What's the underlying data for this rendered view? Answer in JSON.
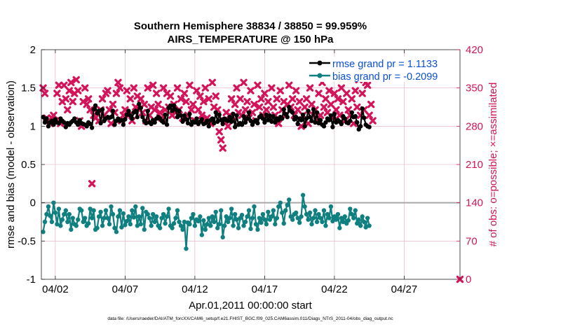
{
  "chart_data": {
    "type": "line",
    "title_line1": "Southern Hemisphere 38834 / 38850 = 99.959%",
    "title_line2": "AIRS_TEMPERATURE @ 150 hPa",
    "xlabel": "Apr.01,2011 00:00:00 start",
    "ylabel_left": "rmse and bias (model - observation)",
    "ylabel_right": "# of obs: o=possible; ×=assimilated",
    "footer": "data file: /Users/raeder/DAI/ATM_forcXX/CAM6_setup/f.e21.FHIST_BGC.f09_025.CAM6assim.011/Diags_NTrS_2011-04/obs_diag_output.nc",
    "x_tick_labels": [
      "04/02",
      "04/07",
      "04/12",
      "04/17",
      "04/22",
      "04/27"
    ],
    "x_tick_days": [
      2,
      7,
      12,
      17,
      22,
      27
    ],
    "x_range_days": [
      1.0,
      31.0
    ],
    "y_left_range": [
      -1,
      2
    ],
    "y_left_ticks": [
      "-1",
      "-0.5",
      "0",
      "0.5",
      "1",
      "1.5",
      "2"
    ],
    "y_right_range": [
      0,
      420
    ],
    "y_right_ticks": [
      "0",
      "70",
      "140",
      "210",
      "280",
      "350",
      "420"
    ],
    "colors": {
      "rmse": "#000000",
      "bias": "#0f7f7f",
      "obs": "#d4145a",
      "grid": "#e6a8bd",
      "zero_line": "#a8a8a8",
      "legend_text": "#0a4fd6"
    },
    "legend": {
      "placement": "top-right",
      "items": [
        {
          "label": "rmse grand pr = 1.1133",
          "series": "rmse"
        },
        {
          "label": "bias grand pr = -0.2099",
          "series": "bias"
        }
      ]
    },
    "series": [
      {
        "name": "rmse grand pr = 1.1133",
        "axis": "left",
        "marker": "circle",
        "color": "#000000",
        "values": [
          1.12,
          1.05,
          1.1,
          1.0,
          1.05,
          1.07,
          1.02,
          1.09,
          1.05,
          1.04,
          1.1,
          1.07,
          1.05,
          0.99,
          1.04,
          1.02,
          1.05,
          1.07,
          1.1,
          1.05,
          1.02,
          1.08,
          1.04,
          1.03,
          1.02,
          1.0,
          1.05,
          1.03,
          0.98,
          1.22,
          1.27,
          1.17,
          1.2,
          1.04,
          1.22,
          1.07,
          1.1,
          1.12,
          1.11,
          1.12,
          1.2,
          1.02,
          1.07,
          1.1,
          1.07,
          1.08,
          1.02,
          1.09,
          1.15,
          1.2,
          1.14,
          1.1,
          1.18,
          1.2,
          1.12,
          1.29,
          1.24,
          1.12,
          1.07,
          1.04,
          1.2,
          1.05,
          1.03,
          1.08,
          1.05,
          1.1,
          1.12,
          1.1,
          1.07,
          1.05,
          1.15,
          1.02,
          1.24,
          1.27,
          1.2,
          1.27,
          1.22,
          1.12,
          1.2,
          1.14,
          1.06,
          1.14,
          1.09,
          1.04,
          1.16,
          1.02,
          1.06,
          1.05,
          1.1,
          1.03,
          1.06,
          1.09,
          1.03,
          1.04,
          1.07,
          1.0,
          1.08,
          1.1,
          1.04,
          1.18,
          1.06,
          1.15,
          1.08,
          1.03,
          1.1,
          1.08,
          1.07,
          1.12,
          1.06,
          1.16,
          0.99,
          1.14,
          1.02,
          1.04,
          1.02,
          1.13,
          1.05,
          1.1,
          1.18,
          1.07,
          1.02,
          1.06,
          1.08,
          1.04,
          1.12,
          1.14,
          1.1,
          1.05,
          1.15,
          1.08,
          1.14,
          1.06,
          1.13,
          1.05,
          1.1,
          1.08,
          1.12,
          1.1,
          1.22,
          1.16,
          1.12,
          1.25,
          1.2,
          1.18,
          1.09,
          1.12,
          1.03,
          1.1,
          1.08,
          1.15,
          1.0,
          1.1,
          1.2,
          1.12,
          1.07,
          1.22,
          1.05,
          1.18,
          1.04,
          1.08,
          1.02,
          1.0,
          1.05,
          1.1,
          1.08,
          1.14,
          0.99,
          1.16,
          1.05,
          1.08,
          1.06,
          1.03,
          1.13,
          1.1,
          1.05,
          1.04,
          1.07,
          1.18,
          1.12,
          1.13,
          1.05,
          0.96,
          1.0,
          1.23,
          1.11,
          1.02,
          1.0,
          0.99
        ]
      },
      {
        "name": "bias grand pr = -0.2099",
        "axis": "left",
        "marker": "circle",
        "color": "#0f7f7f",
        "values": [
          -0.38,
          -0.25,
          -0.15,
          -0.05,
          -0.17,
          -0.25,
          0.0,
          -0.13,
          -0.28,
          -0.08,
          -0.3,
          -0.22,
          -0.15,
          -0.1,
          -0.25,
          -0.15,
          -0.35,
          -0.2,
          -0.28,
          -0.3,
          -0.22,
          -0.08,
          -0.1,
          -0.25,
          -0.2,
          -0.3,
          -0.27,
          -0.08,
          -0.2,
          -0.1,
          -0.35,
          -0.33,
          -0.18,
          -0.12,
          -0.3,
          -0.2,
          -0.1,
          -0.2,
          -0.28,
          -0.05,
          -0.15,
          -0.33,
          -0.38,
          -0.18,
          -0.1,
          -0.32,
          -0.14,
          -0.29,
          -0.24,
          -0.18,
          -0.28,
          -0.1,
          -0.19,
          -0.05,
          -0.3,
          -0.18,
          -0.28,
          -0.07,
          -0.35,
          -0.12,
          -0.15,
          -0.2,
          -0.3,
          -0.15,
          -0.25,
          -0.18,
          -0.3,
          -0.33,
          -0.2,
          -0.15,
          -0.27,
          -0.18,
          -0.08,
          -0.3,
          -0.33,
          -0.27,
          -0.2,
          -0.1,
          -0.25,
          -0.3,
          -0.35,
          -0.25,
          -0.6,
          -0.26,
          -0.28,
          -0.2,
          -0.15,
          -0.3,
          -0.22,
          -0.24,
          -0.18,
          -0.42,
          -0.23,
          -0.35,
          -0.28,
          -0.2,
          -0.3,
          -0.18,
          -0.25,
          -0.12,
          -0.33,
          -0.28,
          -0.1,
          -0.45,
          -0.3,
          -0.18,
          -0.25,
          -0.2,
          -0.08,
          -0.3,
          -0.15,
          -0.22,
          -0.33,
          -0.2,
          -0.16,
          -0.3,
          -0.25,
          -0.18,
          -0.1,
          -0.34,
          -0.2,
          -0.05,
          -0.28,
          -0.35,
          -0.2,
          -0.26,
          -0.15,
          -0.22,
          -0.28,
          -0.12,
          -0.22,
          -0.18,
          -0.1,
          -0.28,
          -0.2,
          -0.05,
          0.0,
          -0.13,
          -0.27,
          -0.1,
          -0.03,
          0.04,
          -0.18,
          -0.22,
          -0.15,
          -0.13,
          -0.2,
          -0.26,
          -0.18,
          0.1,
          -0.05,
          -0.15,
          -0.22,
          -0.13,
          -0.28,
          -0.2,
          -0.1,
          -0.25,
          -0.15,
          -0.2,
          -0.25,
          -0.1,
          -0.3,
          -0.15,
          -0.2,
          -0.05,
          -0.24,
          -0.18,
          -0.22,
          -0.15,
          -0.33,
          -0.2,
          -0.25,
          -0.18,
          -0.27,
          -0.23,
          -0.08,
          -0.15,
          -0.2,
          -0.1,
          -0.27,
          -0.22,
          -0.3,
          -0.18,
          -0.25,
          -0.32,
          -0.2,
          -0.3
        ]
      },
      {
        "name": "",
        "axis": "right",
        "marker": "cross",
        "color": "#d4145a",
        "values": [
          350,
          340,
          295,
          290,
          285,
          295,
          300,
          290,
          340,
          355,
          285,
          325,
          355,
          330,
          310,
          345,
          360,
          325,
          340,
          365,
          345,
          290,
          280,
          325,
          350,
          320,
          330,
          310,
          175,
          300,
          295,
          305,
          290,
          310,
          330,
          300,
          340,
          345,
          310,
          285,
          320,
          305,
          340,
          360,
          350,
          290,
          300,
          310,
          345,
          300,
          330,
          290,
          350,
          315,
          335,
          310,
          330,
          305,
          320,
          290,
          350,
          300,
          315,
          355,
          310,
          340,
          320,
          305,
          295,
          350,
          310,
          340,
          315,
          335,
          300,
          320,
          305,
          350,
          310,
          330,
          295,
          340,
          325,
          300,
          355,
          310,
          320,
          290,
          345,
          310,
          335,
          300,
          325,
          350,
          295,
          330,
          285,
          360,
          315,
          335,
          310,
          270,
          255,
          240,
          290,
          305,
          280,
          300,
          330,
          290,
          320,
          350,
          305,
          330,
          300,
          360,
          310,
          325,
          295,
          345,
          305,
          320,
          290,
          355,
          315,
          330,
          300,
          340,
          310,
          325,
          295,
          350,
          315,
          300,
          330,
          285,
          345,
          310,
          325,
          300,
          320,
          355,
          315,
          330,
          300,
          345,
          310,
          325,
          280,
          300,
          315,
          330,
          285,
          350,
          320,
          300,
          310,
          290,
          340,
          300,
          360,
          315,
          330,
          305,
          345,
          320,
          295,
          340,
          310,
          330,
          300,
          350,
          325,
          290,
          340,
          310,
          300,
          330,
          285,
          345,
          315,
          365,
          300,
          340,
          310,
          360,
          355,
          300,
          320,
          290,
          0
        ]
      }
    ]
  }
}
